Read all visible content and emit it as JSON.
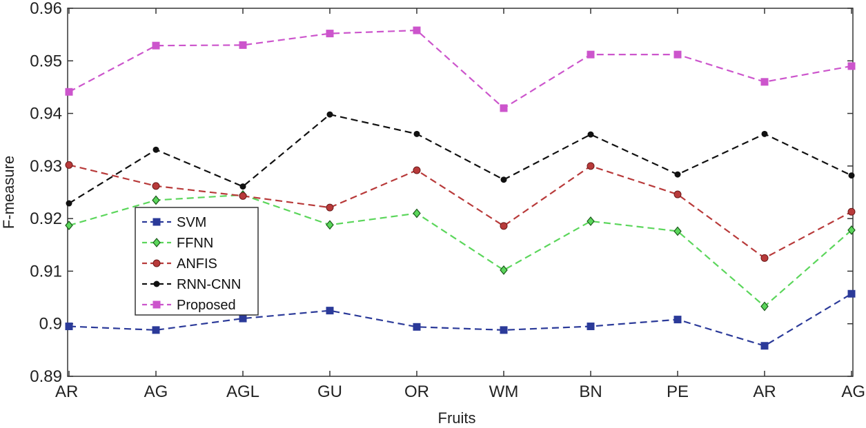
{
  "chart_data": {
    "type": "line",
    "title": "",
    "xlabel": "Fruits",
    "ylabel": "F-measure",
    "categories": [
      "AR",
      "AG",
      "AGL",
      "GU",
      "OR",
      "WM",
      "BN",
      "PE",
      "AR",
      "AG"
    ],
    "ylim": [
      0.89,
      0.96
    ],
    "yticks": [
      0.89,
      0.9,
      0.91,
      0.92,
      0.93,
      0.94,
      0.95,
      0.96
    ],
    "ytick_labels": [
      "0.89",
      "0.9",
      "0.91",
      "0.92",
      "0.93",
      "0.94",
      "0.95",
      "0.96"
    ],
    "grid": false,
    "legend_position": "left",
    "series": [
      {
        "name": "SVM",
        "color": "#2b3a99",
        "marker": "square",
        "values": [
          0.8995,
          0.8988,
          0.901,
          0.9025,
          0.8994,
          0.8988,
          0.8995,
          0.9008,
          0.8958,
          0.9057
        ]
      },
      {
        "name": "FFNN",
        "color": "#5bd65b",
        "marker": "diamond",
        "values": [
          0.9187,
          0.9235,
          0.9245,
          0.9188,
          0.921,
          0.9102,
          0.9195,
          0.9176,
          0.9033,
          0.9178
        ]
      },
      {
        "name": "ANFIS",
        "color": "#b83a3a",
        "marker": "circle",
        "values": [
          0.9302,
          0.9262,
          0.9243,
          0.9221,
          0.9292,
          0.9186,
          0.93,
          0.9246,
          0.9125,
          0.9213
        ]
      },
      {
        "name": "RNN-CNN",
        "color": "#111111",
        "marker": "dot",
        "values": [
          0.9229,
          0.9331,
          0.9261,
          0.9398,
          0.9361,
          0.9274,
          0.936,
          0.9284,
          0.9361,
          0.9282
        ]
      },
      {
        "name": "Proposed",
        "color": "#cc55cc",
        "marker": "square",
        "values": [
          0.9441,
          0.9529,
          0.953,
          0.9552,
          0.9558,
          0.941,
          0.9512,
          0.9512,
          0.946,
          0.949
        ]
      }
    ]
  }
}
